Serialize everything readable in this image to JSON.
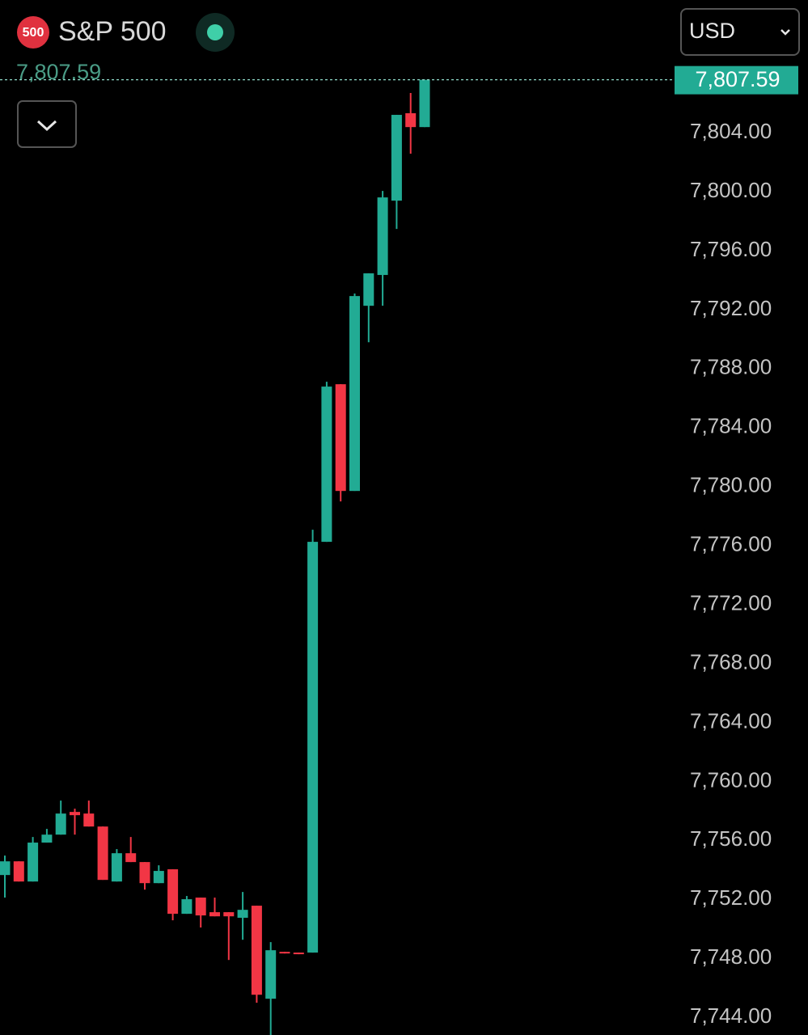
{
  "chart_data": {
    "type": "candlestick",
    "symbol_badge": "500",
    "title": "S&P 500",
    "currency": "USD",
    "last_price": {
      "value": 7807.59,
      "label": "7,807.59"
    },
    "up_color": "#22ab94",
    "down_color": "#f23645",
    "ylim": [
      7742.8,
      7813.0
    ],
    "yticks": [
      {
        "value": 7744,
        "label": "7,744.00"
      },
      {
        "value": 7748,
        "label": "7,748.00"
      },
      {
        "value": 7752,
        "label": "7,752.00"
      },
      {
        "value": 7756,
        "label": "7,756.00"
      },
      {
        "value": 7760,
        "label": "7,760.00"
      },
      {
        "value": 7764,
        "label": "7,764.00"
      },
      {
        "value": 7768,
        "label": "7,768.00"
      },
      {
        "value": 7772,
        "label": "7,772.00"
      },
      {
        "value": 7776,
        "label": "7,776.00"
      },
      {
        "value": 7780,
        "label": "7,780.00"
      },
      {
        "value": 7784,
        "label": "7,784.00"
      },
      {
        "value": 7788,
        "label": "7,788.00"
      },
      {
        "value": 7792,
        "label": "7,792.00"
      },
      {
        "value": 7796,
        "label": "7,796.00"
      },
      {
        "value": 7800,
        "label": "7,800.00"
      },
      {
        "value": 7804,
        "label": "7,804.00"
      }
    ],
    "open": [
      7753.65,
      7754.58,
      7753.21,
      7755.85,
      7756.39,
      7757.93,
      7757.82,
      7756.94,
      7753.21,
      7755.13,
      7754.53,
      7753.1,
      7754.04,
      7751.02,
      7752.12,
      7751.13,
      7751.13,
      7750.75,
      7751.57,
      7745.26,
      7748.44,
      7748.39,
      7748.39,
      7776.25,
      7786.94,
      7779.7,
      7792.26,
      7794.35,
      7799.39,
      7805.32,
      7804.38
    ],
    "high": [
      7754.97,
      7754.58,
      7756.23,
      7756.78,
      7758.7,
      7758.15,
      7758.7,
      7756.94,
      7755.41,
      7756.23,
      7754.53,
      7754.31,
      7754.04,
      7752.23,
      7752.12,
      7752.12,
      7751.13,
      7752.5,
      7751.57,
      7749.1,
      7748.44,
      7748.39,
      7777.07,
      7787.11,
      7786.94,
      7793.09,
      7794.46,
      7800.05,
      7805.21,
      7806.69,
      7807.59
    ],
    "low": [
      7752.12,
      7753.21,
      7753.21,
      7755.85,
      7756.39,
      7756.39,
      7756.94,
      7753.32,
      7753.21,
      7754.53,
      7752.66,
      7753.1,
      7750.58,
      7751.02,
      7750.09,
      7750.85,
      7747.89,
      7749.26,
      7744.99,
      7742.8,
      7748.33,
      7748.28,
      7748.39,
      7776.25,
      7778.99,
      7779.7,
      7789.79,
      7792.26,
      7797.47,
      7802.57,
      7804.38
    ],
    "close": [
      7754.58,
      7753.21,
      7755.85,
      7756.39,
      7757.82,
      7757.71,
      7756.94,
      7753.32,
      7755.13,
      7754.53,
      7753.1,
      7753.93,
      7751.02,
      7752.01,
      7750.91,
      7750.85,
      7750.85,
      7751.29,
      7745.53,
      7748.55,
      7748.33,
      7748.28,
      7776.25,
      7786.78,
      7779.7,
      7792.92,
      7794.46,
      7799.61,
      7805.21,
      7804.38,
      7807.59
    ]
  }
}
